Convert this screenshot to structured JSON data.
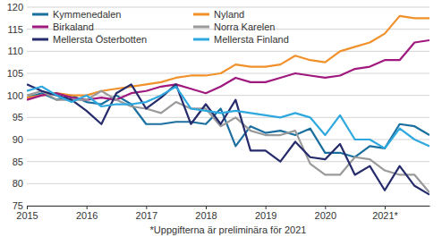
{
  "chart_data": {
    "type": "line",
    "xlabel": "*Uppgifterna är preliminära för 2021",
    "x": [
      2015,
      2015.25,
      2015.5,
      2015.75,
      2016,
      2016.25,
      2016.5,
      2016.75,
      2017,
      2017.25,
      2017.5,
      2017.75,
      2018,
      2018.25,
      2018.5,
      2018.75,
      2019,
      2019.25,
      2019.5,
      2019.75,
      2020,
      2020.25,
      2020.5,
      2020.75,
      2021,
      2021.25,
      2021.5,
      2021.75
    ],
    "xlim": [
      2015,
      2021.75
    ],
    "xticks": [
      2015,
      2016,
      2017,
      2018,
      2019,
      2020,
      {
        "value": 2021,
        "label": "2021*"
      }
    ],
    "ylim": [
      75,
      120
    ],
    "yticks": [
      75,
      80,
      85,
      90,
      95,
      100,
      105,
      110,
      115,
      120
    ],
    "grid": true,
    "legend": "upper left",
    "series": [
      {
        "name": "Kymmenedalen",
        "color": "#1b6f9f",
        "values": [
          99.5,
          100.5,
          99,
          100,
          98.5,
          98,
          100,
          98,
          93.5,
          93.5,
          94,
          94,
          93.5,
          97,
          88.5,
          93,
          91.5,
          92,
          91,
          92.5,
          87,
          87,
          86,
          88.5,
          88,
          93.5,
          93,
          91
        ]
      },
      {
        "name": "Nyland",
        "color": "#f0912b",
        "values": [
          99.5,
          100,
          100.5,
          100,
          100,
          101,
          101.5,
          102,
          102.5,
          103,
          104,
          104.5,
          104.5,
          105,
          107,
          106.5,
          106.5,
          107,
          109,
          108,
          107.5,
          110,
          111,
          112,
          114,
          118,
          117.5,
          117.5
        ]
      },
      {
        "name": "Birkaland",
        "color": "#a0197f",
        "values": [
          99,
          100,
          100.5,
          99.5,
          99,
          99.5,
          99,
          100.5,
          101,
          102,
          102.5,
          101.5,
          100.5,
          102,
          104,
          103,
          103,
          104,
          105,
          104.5,
          104,
          104.5,
          106,
          106.5,
          108,
          108,
          112,
          112.5
        ]
      },
      {
        "name": "Norra Karelen",
        "color": "#9a9a9a",
        "values": [
          100,
          101,
          99,
          99,
          99,
          101,
          99,
          97.5,
          97,
          96,
          98.5,
          97,
          97,
          93,
          95,
          92,
          91,
          91,
          92,
          84.5,
          82,
          82,
          86,
          85.5,
          83,
          82,
          82,
          78
        ]
      },
      {
        "name": "Mellersta Österbotten",
        "color": "#252b6b",
        "values": [
          102.5,
          101,
          100,
          99,
          96.5,
          93.5,
          100.5,
          102.5,
          97,
          99.5,
          102.5,
          93.5,
          98,
          93.5,
          99,
          87.5,
          87.5,
          85,
          89.5,
          86,
          85.5,
          89,
          82,
          84,
          78.5,
          84,
          79.5,
          77.5
        ]
      },
      {
        "name": "Mellersta Finland",
        "color": "#2ea8de",
        "values": [
          101,
          102,
          100,
          98.5,
          100,
          97.5,
          98,
          98,
          98.5,
          100,
          102,
          97,
          96.5,
          96,
          96.5,
          96,
          95.5,
          95,
          96,
          95,
          91,
          95.5,
          90,
          90,
          88,
          92.5,
          90,
          88.5
        ]
      }
    ]
  }
}
